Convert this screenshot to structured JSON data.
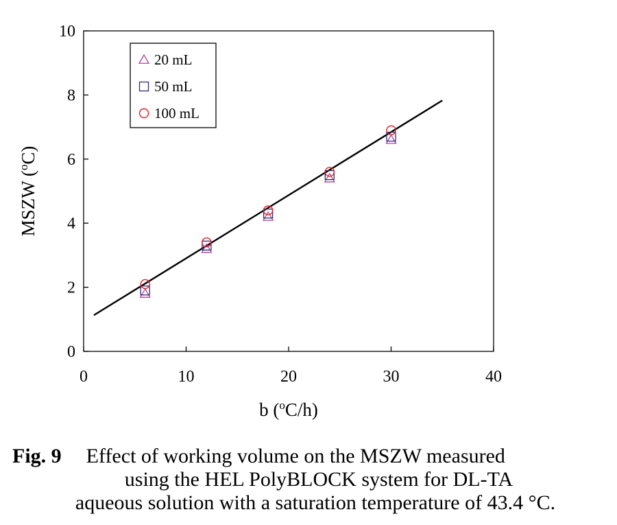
{
  "chart_data": {
    "type": "scatter",
    "xlabel_parts": [
      "b (",
      "o",
      "C/h)"
    ],
    "ylabel_parts": [
      "MSZW (",
      "o",
      "C)"
    ],
    "xlim": [
      0,
      40
    ],
    "ylim": [
      0,
      10
    ],
    "x_ticks": [
      0,
      10,
      20,
      30,
      40
    ],
    "y_ticks": [
      0,
      2,
      4,
      6,
      8,
      10
    ],
    "grid": false,
    "legend_position": "top-left",
    "series": [
      {
        "name": "20 mL",
        "marker": "triangle",
        "color": "#b0409a",
        "x": [
          6,
          12,
          18,
          24,
          30
        ],
        "y": [
          1.8,
          3.2,
          4.2,
          5.4,
          6.6
        ]
      },
      {
        "name": "50 mL",
        "marker": "square",
        "color": "#2b2b7a",
        "x": [
          6,
          12,
          18,
          24,
          30
        ],
        "y": [
          1.9,
          3.3,
          4.3,
          5.5,
          6.7
        ]
      },
      {
        "name": "100 mL",
        "marker": "circle",
        "color": "#e02020",
        "x": [
          6,
          12,
          18,
          24,
          30
        ],
        "y": [
          2.1,
          3.4,
          4.4,
          5.6,
          6.9
        ]
      }
    ],
    "fit_line": {
      "x": [
        1,
        35
      ],
      "y": [
        1.13,
        7.83
      ],
      "color": "#000000"
    }
  },
  "caption": {
    "label": "Fig. 9",
    "line1": "Effect of working volume on the MSZW measured",
    "line2": "using the HEL PolyBLOCK system for DL-TA",
    "line3": "aqueous solution with a saturation temperature of 43.4 °C."
  }
}
